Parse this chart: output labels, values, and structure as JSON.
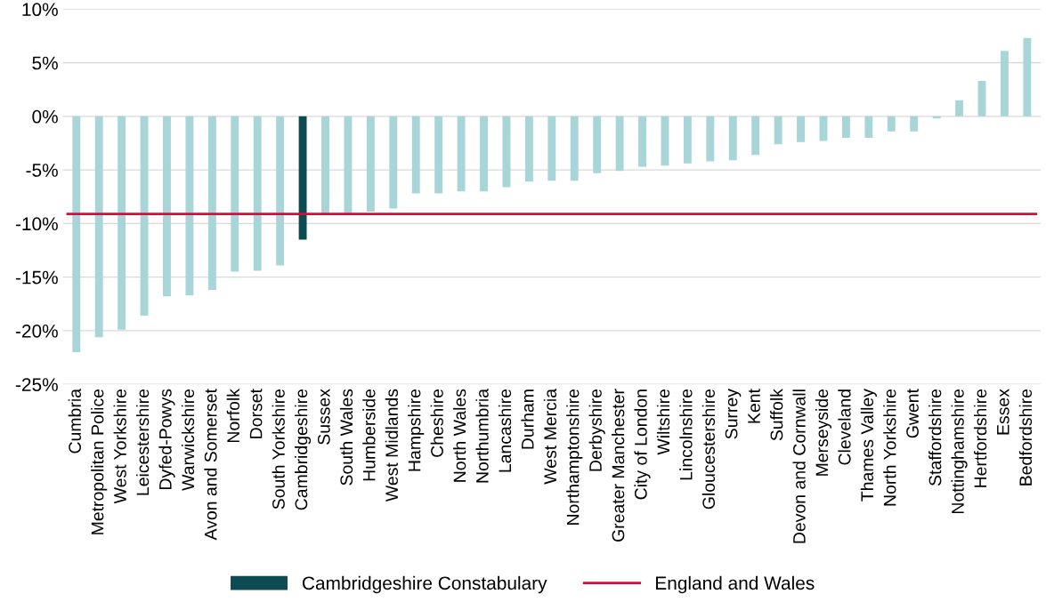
{
  "chart_data": {
    "type": "bar",
    "categories": [
      "Cumbria",
      "Metropolitan Police",
      "West Yorkshire",
      "Leicestershire",
      "Dyfed-Powys",
      "Warwickshire",
      "Avon and Somerset",
      "Norfolk",
      "Dorset",
      "South Yorkshire",
      "Cambridgeshire",
      "Sussex",
      "South Wales",
      "Humberside",
      "West Midlands",
      "Hampshire",
      "Cheshire",
      "North Wales",
      "Northumbria",
      "Lancashire",
      "Durham",
      "West Mercia",
      "Northamptonshire",
      "Derbyshire",
      "Greater Manchester",
      "City of London",
      "Wiltshire",
      "Lincolnshire",
      "Gloucestershire",
      "Surrey",
      "Kent",
      "Suffolk",
      "Devon and Cornwall",
      "Merseyside",
      "Cleveland",
      "Thames Valley",
      "North Yorkshire",
      "Gwent",
      "Staffordshire",
      "Nottinghamshire",
      "Hertfordshire",
      "Essex",
      "Bedfordshire"
    ],
    "series": [
      {
        "color": "#a8d5d8",
        "values": [
          -22.0,
          -20.6,
          -19.9,
          -18.6,
          -16.8,
          -16.7,
          -16.2,
          -14.5,
          -14.4,
          -13.9,
          null,
          -9.2,
          -9.1,
          -8.9,
          -8.6,
          -7.2,
          -7.2,
          -7.0,
          -7.0,
          -6.6,
          -6.1,
          -6.0,
          -6.0,
          -5.3,
          -5.1,
          -4.7,
          -4.6,
          -4.4,
          -4.2,
          -4.1,
          -3.6,
          -2.6,
          -2.4,
          -2.3,
          -2.0,
          -2.0,
          -1.4,
          -1.4,
          -0.2,
          1.5,
          3.3,
          6.1,
          7.3
        ]
      },
      {
        "name": "Cambridgeshire Constabulary",
        "color": "#0d4a52",
        "values": [
          null,
          null,
          null,
          null,
          null,
          null,
          null,
          null,
          null,
          null,
          -11.5,
          null,
          null,
          null,
          null,
          null,
          null,
          null,
          null,
          null,
          null,
          null,
          null,
          null,
          null,
          null,
          null,
          null,
          null,
          null,
          null,
          null,
          null,
          null,
          null,
          null,
          null,
          null,
          null,
          null,
          null,
          null,
          null
        ]
      }
    ],
    "ref_lines": [
      {
        "axis": "y",
        "value": -9.1,
        "label": "England and Wales",
        "color": "#d0103a"
      }
    ],
    "ylim": [
      -25,
      10
    ],
    "yticks": [
      {
        "value": -25,
        "label": "-25%"
      },
      {
        "value": -20,
        "label": "-20%"
      },
      {
        "value": -15,
        "label": "-15%"
      },
      {
        "value": -10,
        "label": "-10%"
      },
      {
        "value": -5,
        "label": "-5%"
      },
      {
        "value": 0,
        "label": "0%"
      },
      {
        "value": 5,
        "label": "5%"
      },
      {
        "value": 10,
        "label": "10%"
      }
    ],
    "grid": "y",
    "legend": "bottom"
  }
}
